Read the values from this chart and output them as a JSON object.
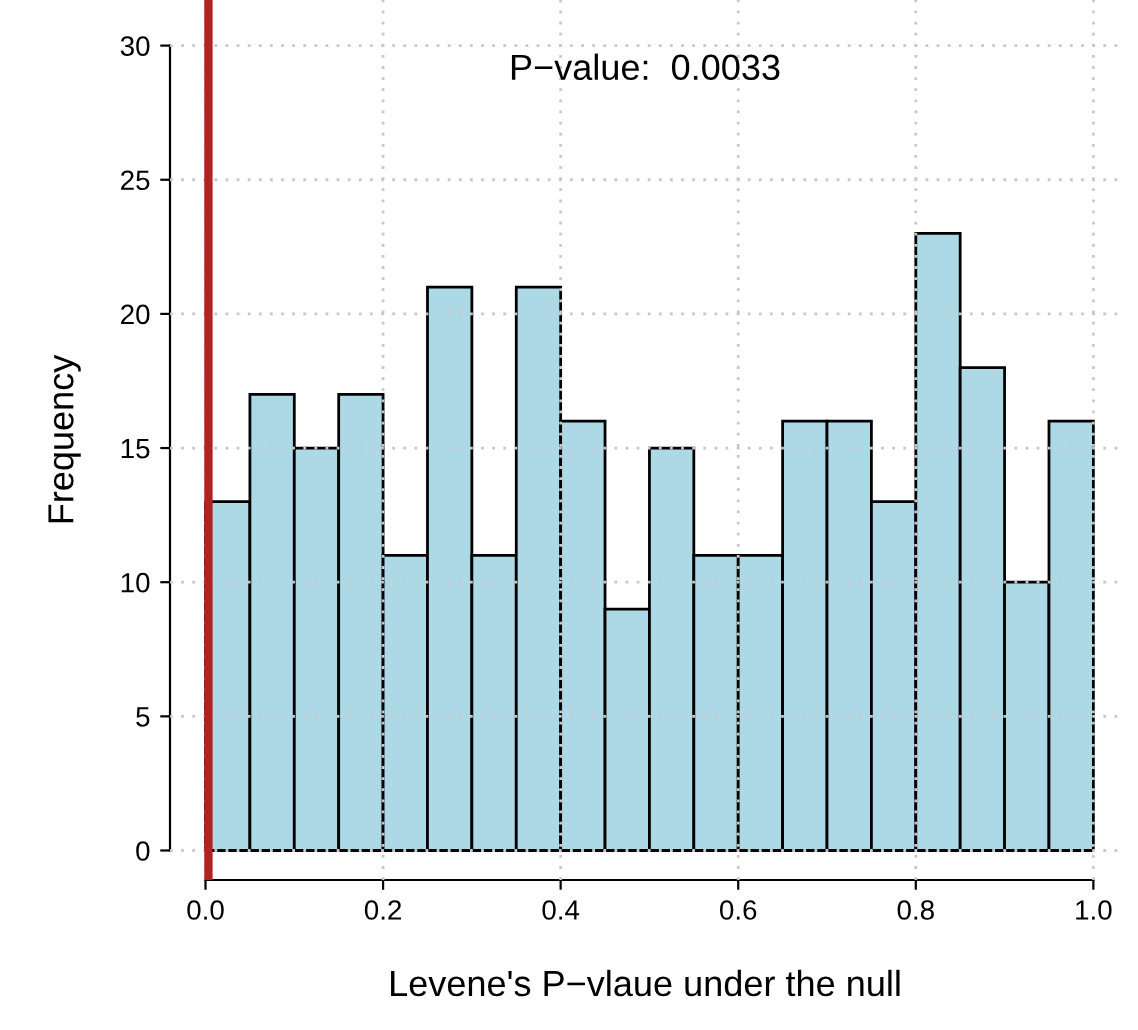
{
  "chart_data": {
    "type": "histogram",
    "xlabel": "Levene's P−vlaue under the null",
    "ylabel": "Frequency",
    "bins": [
      0,
      0.05,
      0.1,
      0.15,
      0.2,
      0.25,
      0.3,
      0.35,
      0.4,
      0.45,
      0.5,
      0.55,
      0.6,
      0.65,
      0.7,
      0.75,
      0.8,
      0.85,
      0.9,
      0.95,
      1.0
    ],
    "values": [
      13,
      17,
      15,
      17,
      11,
      21,
      11,
      21,
      16,
      9,
      15,
      11,
      11,
      16,
      16,
      13,
      23,
      18,
      10,
      16
    ],
    "color": "#add8e6",
    "xlim": [
      -0.04,
      1.03
    ],
    "ylim": [
      -1.1,
      31.7
    ],
    "xticks": [
      {
        "value": 0,
        "label": "0.0"
      },
      {
        "value": 0.2,
        "label": "0.2"
      },
      {
        "value": 0.4,
        "label": "0.4"
      },
      {
        "value": 0.6,
        "label": "0.6"
      },
      {
        "value": 0.8,
        "label": "0.8"
      },
      {
        "value": 1.0,
        "label": "1.0"
      }
    ],
    "yticks": [
      0,
      5,
      10,
      15,
      20,
      25,
      30
    ],
    "grid": true,
    "ref_lines": [
      {
        "axis": "x",
        "value": 0.0033,
        "color": "#b22222"
      }
    ],
    "annotations": [
      "P−value:  0.0033"
    ]
  }
}
